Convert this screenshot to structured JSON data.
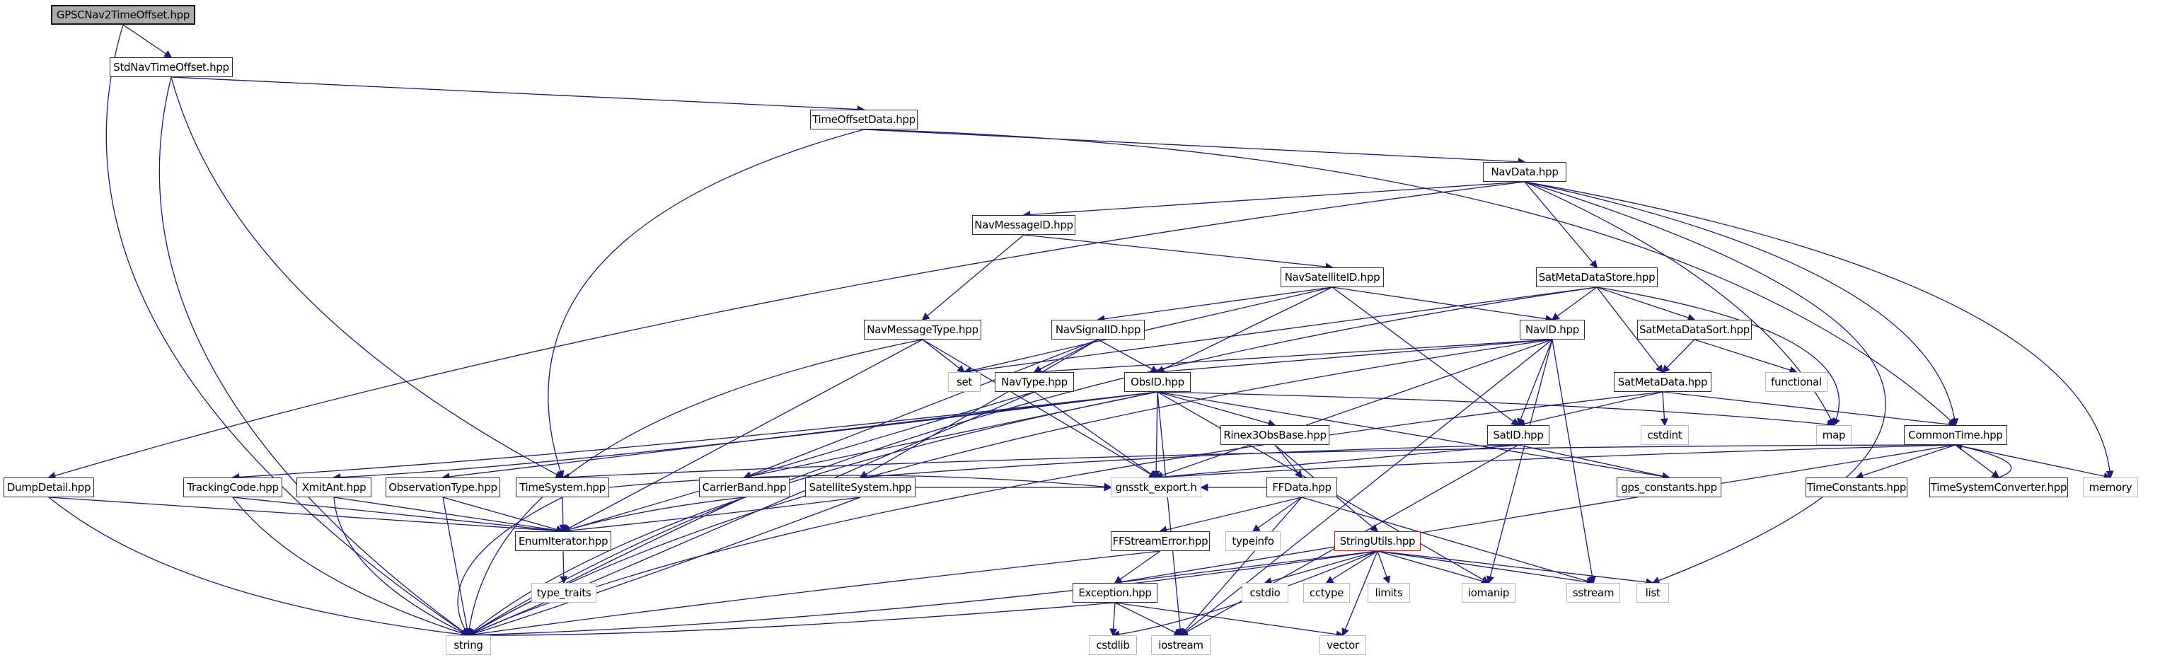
{
  "graph": {
    "title": "GPSCNav2TimeOffset.hpp include dependency graph",
    "edge_color": "#1a1a78",
    "root_fill": "#ababab",
    "highlight_border_color": "#ff0000"
  },
  "nodes": [
    {
      "id": "gpscnav2",
      "label": "GPSCNav2TimeOffset.hpp",
      "kind": "root"
    },
    {
      "id": "stdnav",
      "label": "StdNavTimeOffset.hpp",
      "kind": "header"
    },
    {
      "id": "timeoffsetdata",
      "label": "TimeOffsetData.hpp",
      "kind": "header"
    },
    {
      "id": "navdata",
      "label": "NavData.hpp",
      "kind": "header"
    },
    {
      "id": "navmessageid",
      "label": "NavMessageID.hpp",
      "kind": "header"
    },
    {
      "id": "navsatelliteid",
      "label": "NavSatelliteID.hpp",
      "kind": "header"
    },
    {
      "id": "satmetadatastore",
      "label": "SatMetaDataStore.hpp",
      "kind": "header"
    },
    {
      "id": "navmessagetype",
      "label": "NavMessageType.hpp",
      "kind": "header"
    },
    {
      "id": "navsignalid",
      "label": "NavSignalID.hpp",
      "kind": "header"
    },
    {
      "id": "navid",
      "label": "NavID.hpp",
      "kind": "header"
    },
    {
      "id": "satmetadatasort",
      "label": "SatMetaDataSort.hpp",
      "kind": "header"
    },
    {
      "id": "set",
      "label": "set",
      "kind": "system"
    },
    {
      "id": "navtype",
      "label": "NavType.hpp",
      "kind": "header"
    },
    {
      "id": "obsid",
      "label": "ObsID.hpp",
      "kind": "header"
    },
    {
      "id": "satmetadata",
      "label": "SatMetaData.hpp",
      "kind": "header"
    },
    {
      "id": "functional",
      "label": "functional",
      "kind": "system"
    },
    {
      "id": "rinex3obsbase",
      "label": "Rinex3ObsBase.hpp",
      "kind": "header"
    },
    {
      "id": "satid",
      "label": "SatID.hpp",
      "kind": "header"
    },
    {
      "id": "cstdint",
      "label": "cstdint",
      "kind": "system"
    },
    {
      "id": "map",
      "label": "map",
      "kind": "system"
    },
    {
      "id": "commontime",
      "label": "CommonTime.hpp",
      "kind": "header"
    },
    {
      "id": "dumpdetail",
      "label": "DumpDetail.hpp",
      "kind": "header"
    },
    {
      "id": "trackingcode",
      "label": "TrackingCode.hpp",
      "kind": "header"
    },
    {
      "id": "xmitant",
      "label": "XmitAnt.hpp",
      "kind": "header"
    },
    {
      "id": "observationtype",
      "label": "ObservationType.hpp",
      "kind": "header"
    },
    {
      "id": "timesystem",
      "label": "TimeSystem.hpp",
      "kind": "header"
    },
    {
      "id": "carrierband",
      "label": "CarrierBand.hpp",
      "kind": "header"
    },
    {
      "id": "satellitesystem",
      "label": "SatelliteSystem.hpp",
      "kind": "header"
    },
    {
      "id": "gnsstk_export",
      "label": "gnsstk_export.h",
      "kind": "system"
    },
    {
      "id": "ffdata",
      "label": "FFData.hpp",
      "kind": "header"
    },
    {
      "id": "gps_constants",
      "label": "gps_constants.hpp",
      "kind": "header"
    },
    {
      "id": "timeconstants",
      "label": "TimeConstants.hpp",
      "kind": "header"
    },
    {
      "id": "timesystemconverter",
      "label": "TimeSystemConverter.hpp",
      "kind": "header"
    },
    {
      "id": "memory",
      "label": "memory",
      "kind": "system"
    },
    {
      "id": "enumiterator",
      "label": "EnumIterator.hpp",
      "kind": "header"
    },
    {
      "id": "ffstreamerror",
      "label": "FFStreamError.hpp",
      "kind": "header"
    },
    {
      "id": "typeinfo",
      "label": "typeinfo",
      "kind": "system"
    },
    {
      "id": "stringutils",
      "label": "StringUtils.hpp",
      "kind": "highlight"
    },
    {
      "id": "type_traits",
      "label": "type_traits",
      "kind": "system"
    },
    {
      "id": "exception",
      "label": "Exception.hpp",
      "kind": "header"
    },
    {
      "id": "cstdio",
      "label": "cstdio",
      "kind": "system"
    },
    {
      "id": "cctype",
      "label": "cctype",
      "kind": "system"
    },
    {
      "id": "limits",
      "label": "limits",
      "kind": "system"
    },
    {
      "id": "iomanip",
      "label": "iomanip",
      "kind": "system"
    },
    {
      "id": "sstream",
      "label": "sstream",
      "kind": "system"
    },
    {
      "id": "list",
      "label": "list",
      "kind": "system"
    },
    {
      "id": "string",
      "label": "string",
      "kind": "system"
    },
    {
      "id": "cstdlib",
      "label": "cstdlib",
      "kind": "system"
    },
    {
      "id": "iostream",
      "label": "iostream",
      "kind": "system"
    },
    {
      "id": "vector",
      "label": "vector",
      "kind": "system"
    }
  ],
  "edges": [
    {
      "from": "gpscnav2",
      "to": "stdnav"
    },
    {
      "from": "gpscnav2",
      "to": "string"
    },
    {
      "from": "stdnav",
      "to": "timeoffsetdata"
    },
    {
      "from": "stdnav",
      "to": "timesystem"
    },
    {
      "from": "stdnav",
      "to": "string"
    },
    {
      "from": "timeoffsetdata",
      "to": "navdata"
    },
    {
      "from": "timeoffsetdata",
      "to": "timesystem"
    },
    {
      "from": "timeoffsetdata",
      "to": "commontime"
    },
    {
      "from": "navdata",
      "to": "navmessageid"
    },
    {
      "from": "navdata",
      "to": "satmetadatastore"
    },
    {
      "from": "navdata",
      "to": "dumpdetail"
    },
    {
      "from": "navdata",
      "to": "commontime"
    },
    {
      "from": "navdata",
      "to": "map"
    },
    {
      "from": "navdata",
      "to": "memory"
    },
    {
      "from": "navdata",
      "to": "list"
    },
    {
      "from": "navmessageid",
      "to": "navsatelliteid"
    },
    {
      "from": "navmessageid",
      "to": "navmessagetype"
    },
    {
      "from": "navsatelliteid",
      "to": "navsignalid"
    },
    {
      "from": "navsatelliteid",
      "to": "navid"
    },
    {
      "from": "navsatelliteid",
      "to": "satid"
    },
    {
      "from": "navsatelliteid",
      "to": "set"
    },
    {
      "from": "navsatelliteid",
      "to": "obsid"
    },
    {
      "from": "satmetadatastore",
      "to": "navid"
    },
    {
      "from": "satmetadatastore",
      "to": "satmetadatasort"
    },
    {
      "from": "satmetadatastore",
      "to": "satmetadata"
    },
    {
      "from": "satmetadatastore",
      "to": "map"
    },
    {
      "from": "satmetadatastore",
      "to": "set"
    },
    {
      "from": "satmetadatastore",
      "to": "string"
    },
    {
      "from": "satmetadatasort",
      "to": "satmetadata"
    },
    {
      "from": "satmetadatasort",
      "to": "functional"
    },
    {
      "from": "satmetadata",
      "to": "cstdint"
    },
    {
      "from": "satmetadata",
      "to": "satid"
    },
    {
      "from": "satmetadata",
      "to": "commontime"
    },
    {
      "from": "satmetadata",
      "to": "string"
    },
    {
      "from": "navid",
      "to": "navtype"
    },
    {
      "from": "navid",
      "to": "obsid"
    },
    {
      "from": "navid",
      "to": "satid"
    },
    {
      "from": "navid",
      "to": "gnsstk_export"
    },
    {
      "from": "navid",
      "to": "sstream"
    },
    {
      "from": "navid",
      "to": "iostream"
    },
    {
      "from": "navid",
      "to": "iomanip"
    },
    {
      "from": "navid",
      "to": "string"
    },
    {
      "from": "navsignalid",
      "to": "navtype"
    },
    {
      "from": "navsignalid",
      "to": "obsid"
    },
    {
      "from": "navsignalid",
      "to": "satellitesystem"
    },
    {
      "from": "navsignalid",
      "to": "carrierband"
    },
    {
      "from": "navmessagetype",
      "to": "set"
    },
    {
      "from": "navmessagetype",
      "to": "enumiterator"
    },
    {
      "from": "navmessagetype",
      "to": "string"
    },
    {
      "from": "navmessagetype",
      "to": "gnsstk_export"
    },
    {
      "from": "navtype",
      "to": "enumiterator"
    },
    {
      "from": "navtype",
      "to": "string"
    },
    {
      "from": "navtype",
      "to": "gnsstk_export"
    },
    {
      "from": "obsid",
      "to": "observationtype"
    },
    {
      "from": "obsid",
      "to": "carrierband"
    },
    {
      "from": "obsid",
      "to": "trackingcode"
    },
    {
      "from": "obsid",
      "to": "xmitant"
    },
    {
      "from": "obsid",
      "to": "rinex3obsbase"
    },
    {
      "from": "obsid",
      "to": "gnsstk_export"
    },
    {
      "from": "obsid",
      "to": "gps_constants"
    },
    {
      "from": "obsid",
      "to": "map"
    },
    {
      "from": "obsid",
      "to": "iostream"
    },
    {
      "from": "obsid",
      "to": "iomanip"
    },
    {
      "from": "obsid",
      "to": "string"
    },
    {
      "from": "rinex3obsbase",
      "to": "ffdata"
    },
    {
      "from": "rinex3obsbase",
      "to": "stringutils"
    },
    {
      "from": "satid",
      "to": "satellitesystem"
    },
    {
      "from": "satid",
      "to": "gnsstk_export"
    },
    {
      "from": "satid",
      "to": "gps_constants"
    },
    {
      "from": "satid",
      "to": "iostream"
    },
    {
      "from": "ffdata",
      "to": "ffstreamerror"
    },
    {
      "from": "ffdata",
      "to": "typeinfo"
    },
    {
      "from": "ffdata",
      "to": "gnsstk_export"
    },
    {
      "from": "ffdata",
      "to": "iostream"
    },
    {
      "from": "ffdata",
      "to": "sstream"
    },
    {
      "from": "ffstreamerror",
      "to": "exception"
    },
    {
      "from": "ffstreamerror",
      "to": "string"
    },
    {
      "from": "stringutils",
      "to": "exception"
    },
    {
      "from": "stringutils",
      "to": "cstdio"
    },
    {
      "from": "stringutils",
      "to": "cctype"
    },
    {
      "from": "stringutils",
      "to": "limits"
    },
    {
      "from": "stringutils",
      "to": "iomanip"
    },
    {
      "from": "stringutils",
      "to": "sstream"
    },
    {
      "from": "stringutils",
      "to": "list"
    },
    {
      "from": "stringutils",
      "to": "vector"
    },
    {
      "from": "stringutils",
      "to": "cstdlib"
    },
    {
      "from": "stringutils",
      "to": "string"
    },
    {
      "from": "commontime",
      "to": "timeconstants"
    },
    {
      "from": "commontime",
      "to": "timesystemconverter"
    },
    {
      "from": "timesystemconverter",
      "to": "commontime"
    },
    {
      "from": "commontime",
      "to": "memory"
    },
    {
      "from": "commontime",
      "to": "exception"
    },
    {
      "from": "commontime",
      "to": "timesystem"
    },
    {
      "from": "commontime",
      "to": "gnsstk_export"
    },
    {
      "from": "exception",
      "to": "cstdlib"
    },
    {
      "from": "exception",
      "to": "iostream"
    },
    {
      "from": "exception",
      "to": "vector"
    },
    {
      "from": "exception",
      "to": "string"
    },
    {
      "from": "timesystem",
      "to": "enumiterator"
    },
    {
      "from": "timesystem",
      "to": "string"
    },
    {
      "from": "timesystem",
      "to": "gnsstk_export"
    },
    {
      "from": "dumpdetail",
      "to": "enumiterator"
    },
    {
      "from": "dumpdetail",
      "to": "string"
    },
    {
      "from": "trackingcode",
      "to": "enumiterator"
    },
    {
      "from": "trackingcode",
      "to": "string"
    },
    {
      "from": "xmitant",
      "to": "enumiterator"
    },
    {
      "from": "xmitant",
      "to": "string"
    },
    {
      "from": "observationtype",
      "to": "enumiterator"
    },
    {
      "from": "observationtype",
      "to": "string"
    },
    {
      "from": "carrierband",
      "to": "enumiterator"
    },
    {
      "from": "carrierband",
      "to": "string"
    },
    {
      "from": "satellitesystem",
      "to": "enumiterator"
    },
    {
      "from": "satellitesystem",
      "to": "string"
    },
    {
      "from": "satellitesystem",
      "to": "gnsstk_export"
    },
    {
      "from": "enumiterator",
      "to": "type_traits"
    }
  ]
}
